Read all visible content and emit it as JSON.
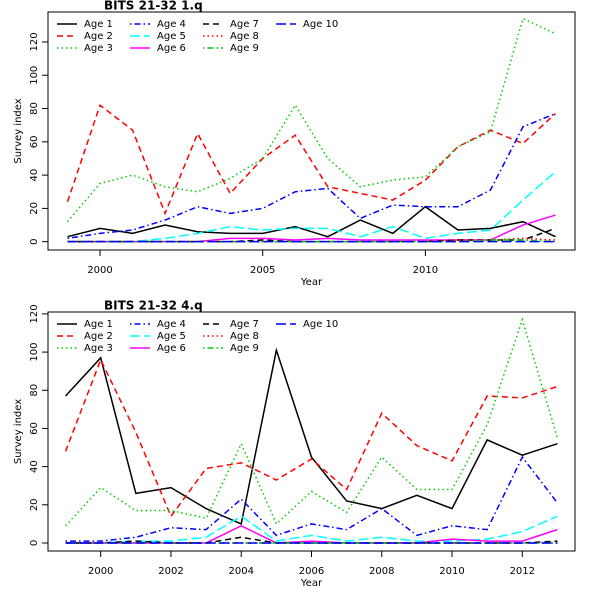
{
  "chart_data": [
    {
      "type": "line",
      "title": "BITS 21-32 1.q",
      "x_label": "Year",
      "y_label": "Survey index",
      "x": [
        1999,
        2000,
        2001,
        2002,
        2003,
        2004,
        2005,
        2006,
        2007,
        2008,
        2009,
        2010,
        2011,
        2012,
        2013,
        2014
      ],
      "xlim": [
        1998.4,
        2014.6
      ],
      "xticks": [
        2000,
        2005,
        2010
      ],
      "ylim": [
        -5,
        138
      ],
      "yticks": [
        0,
        20,
        40,
        60,
        80,
        100,
        120
      ],
      "series": [
        {
          "name": "Age 1",
          "color": "#000000",
          "linestyle": "solid",
          "values": [
            3,
            8,
            5,
            10,
            6,
            5,
            5,
            9,
            3,
            13,
            5,
            21,
            7,
            8,
            12,
            3
          ]
        },
        {
          "name": "Age 2",
          "color": "#ff0000",
          "linestyle": "dashed",
          "values": [
            24,
            82,
            67,
            17,
            65,
            29,
            50,
            64,
            33,
            29,
            25,
            37,
            57,
            67,
            59,
            77
          ]
        },
        {
          "name": "Age 3",
          "color": "#00cd00",
          "linestyle": "dotted",
          "values": [
            12,
            35,
            40,
            33,
            30,
            38,
            50,
            82,
            50,
            33,
            37,
            39,
            57,
            66,
            134,
            125
          ]
        },
        {
          "name": "Age 4",
          "color": "#0000ff",
          "linestyle": "dotdash",
          "values": [
            2,
            5,
            7,
            13,
            21,
            17,
            20,
            30,
            32,
            14,
            22,
            21,
            21,
            31,
            69,
            77
          ]
        },
        {
          "name": "Age 5",
          "color": "#00ffff",
          "linestyle": "longdash",
          "values": [
            0,
            0,
            0,
            2,
            5,
            9,
            7,
            8,
            8,
            3,
            9,
            2,
            5,
            7,
            25,
            42
          ]
        },
        {
          "name": "Age 6",
          "color": "#ff00ff",
          "linestyle": "solid",
          "values": [
            0,
            0,
            0,
            0,
            0,
            2,
            2,
            1,
            2,
            1,
            1,
            1,
            1,
            1,
            10,
            16
          ]
        },
        {
          "name": "Age 7",
          "color": "#000000",
          "linestyle": "dashed",
          "values": [
            0,
            0,
            0,
            0,
            0,
            0,
            1,
            0,
            0,
            0,
            0,
            0,
            1,
            1,
            1,
            8
          ]
        },
        {
          "name": "Age 8",
          "color": "#ff0000",
          "linestyle": "dotted",
          "values": [
            0,
            0,
            0,
            0,
            0,
            0,
            0,
            0,
            0,
            0,
            0,
            0,
            1,
            1,
            2,
            1
          ]
        },
        {
          "name": "Age 9",
          "color": "#00cd00",
          "linestyle": "dotdash",
          "values": [
            0,
            0,
            0,
            0,
            0,
            0,
            0,
            0,
            0,
            0,
            0,
            0,
            0,
            1,
            1,
            0
          ]
        },
        {
          "name": "Age 10",
          "color": "#0000ff",
          "linestyle": "longdash",
          "values": [
            0,
            0,
            0,
            0,
            0,
            0,
            0,
            0,
            0,
            0,
            0,
            0,
            0,
            0,
            0,
            0
          ]
        }
      ]
    },
    {
      "type": "line",
      "title": "BITS 21-32 4.q",
      "x_label": "Year",
      "y_label": "Survey index",
      "x": [
        1999,
        2000,
        2001,
        2002,
        2003,
        2004,
        2005,
        2006,
        2007,
        2008,
        2009,
        2010,
        2011,
        2012,
        2013
      ],
      "xlim": [
        1998.5,
        2013.5
      ],
      "xticks": [
        2000,
        2002,
        2004,
        2006,
        2008,
        2010,
        2012
      ],
      "ylim": [
        -4.2,
        121
      ],
      "yticks": [
        0,
        20,
        40,
        60,
        80,
        100,
        120
      ],
      "series": [
        {
          "name": "Age 1",
          "color": "#000000",
          "linestyle": "solid",
          "values": [
            77,
            97,
            26,
            29,
            18,
            10,
            101,
            45,
            22,
            18,
            25,
            18,
            54,
            46,
            52
          ]
        },
        {
          "name": "Age 2",
          "color": "#ff0000",
          "linestyle": "dashed",
          "values": [
            48,
            96,
            58,
            14,
            39,
            42,
            33,
            44,
            28,
            68,
            51,
            43,
            77,
            76,
            82
          ]
        },
        {
          "name": "Age 3",
          "color": "#00cd00",
          "linestyle": "dotted",
          "values": [
            9,
            29,
            17,
            17,
            13,
            52,
            10,
            27,
            16,
            45,
            28,
            28,
            62,
            117,
            55
          ]
        },
        {
          "name": "Age 4",
          "color": "#0000ff",
          "linestyle": "dotdash",
          "values": [
            1,
            1,
            3,
            8,
            7,
            23,
            4,
            10,
            7,
            18,
            4,
            9,
            7,
            45,
            21
          ]
        },
        {
          "name": "Age 5",
          "color": "#00ffff",
          "linestyle": "longdash",
          "values": [
            0,
            0,
            1,
            1,
            3,
            14,
            1,
            4,
            1,
            3,
            1,
            1,
            2,
            6,
            14
          ]
        },
        {
          "name": "Age 6",
          "color": "#ff00ff",
          "linestyle": "solid",
          "values": [
            0,
            0,
            0,
            0,
            0,
            9,
            0,
            1,
            0,
            0,
            0,
            2,
            1,
            1,
            7
          ]
        },
        {
          "name": "Age 7",
          "color": "#000000",
          "linestyle": "dashed",
          "values": [
            0,
            0,
            1,
            0,
            0,
            3,
            0,
            0,
            0,
            0,
            0,
            0,
            0,
            0,
            1
          ]
        },
        {
          "name": "Age 8",
          "color": "#ff0000",
          "linestyle": "dotted",
          "values": [
            0,
            0,
            0,
            0,
            0,
            0,
            0,
            0,
            0,
            0,
            0,
            0,
            0,
            0,
            0
          ]
        },
        {
          "name": "Age 9",
          "color": "#00cd00",
          "linestyle": "dotdash",
          "values": [
            0,
            0,
            0,
            0,
            0,
            0,
            0,
            0,
            0,
            0,
            0,
            0,
            0,
            0,
            0
          ]
        },
        {
          "name": "Age 10",
          "color": "#0000ff",
          "linestyle": "longdash",
          "values": [
            0,
            0,
            0,
            0,
            0,
            0,
            0,
            0,
            0,
            0,
            0,
            0,
            0,
            0,
            0
          ]
        }
      ]
    }
  ]
}
